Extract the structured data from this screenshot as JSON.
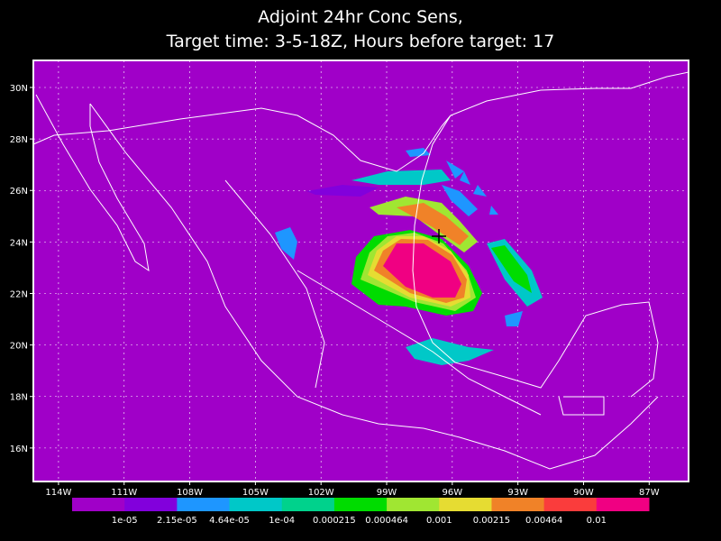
{
  "header": {
    "title_line_1": "Adjoint 24hr Conc Sens,",
    "title_line_2": "Target time: 3-5-18Z, Hours before target: 17"
  },
  "map": {
    "lon_range": [
      -115.15,
      -85.2
    ],
    "lat_range": [
      14.7,
      31.05
    ],
    "lon_ticks": [
      {
        "value": -114,
        "label": "114W"
      },
      {
        "value": -111,
        "label": "111W"
      },
      {
        "value": -108,
        "label": "108W"
      },
      {
        "value": -105,
        "label": "105W"
      },
      {
        "value": -102,
        "label": "102W"
      },
      {
        "value": -99,
        "label": "99W"
      },
      {
        "value": -96,
        "label": "96W"
      },
      {
        "value": -93,
        "label": "93W"
      },
      {
        "value": -90,
        "label": "90W"
      },
      {
        "value": -87,
        "label": "87W"
      }
    ],
    "lat_ticks": [
      {
        "value": 16,
        "label": "16N"
      },
      {
        "value": 18,
        "label": "18N"
      },
      {
        "value": 20,
        "label": "20N"
      },
      {
        "value": 22,
        "label": "22N"
      },
      {
        "value": 24,
        "label": "24N"
      },
      {
        "value": 26,
        "label": "26N"
      },
      {
        "value": 28,
        "label": "28N"
      },
      {
        "value": 30,
        "label": "30N"
      }
    ]
  },
  "colorbar": {
    "colors": [
      "#a000c8",
      "#8200dc",
      "#1e96ff",
      "#00c8c8",
      "#00d28c",
      "#00dc00",
      "#a0e632",
      "#e6dc32",
      "#f08228",
      "#fa3c3c",
      "#f00082"
    ],
    "labels": [
      "1e-05",
      "2.15e-05",
      "4.64e-05",
      "1e-04",
      "0.000215",
      "0.000464",
      "0.001",
      "0.00215",
      "0.00464",
      "0.01"
    ]
  }
}
